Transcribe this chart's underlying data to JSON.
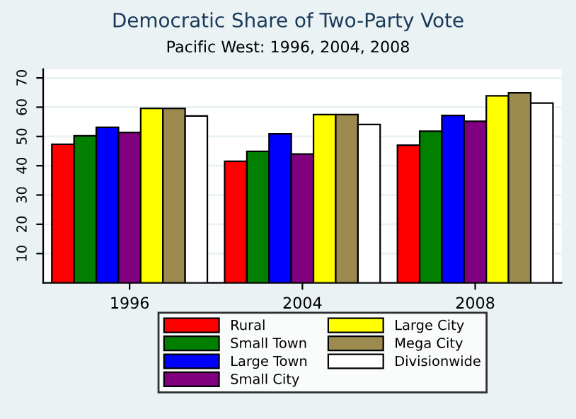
{
  "chart_data": {
    "type": "bar",
    "title": "Democratic Share of Two-Party Vote",
    "subtitle": "Pacific West: 1996, 2004, 2008",
    "categories": [
      "1996",
      "2004",
      "2008"
    ],
    "series": [
      {
        "name": "Rural",
        "color": "#ff0000",
        "values": [
          47.3,
          41.5,
          47.0
        ]
      },
      {
        "name": "Small Town",
        "color": "#007f00",
        "values": [
          50.2,
          44.9,
          51.8
        ]
      },
      {
        "name": "Large Town",
        "color": "#0000ff",
        "values": [
          53.1,
          50.9,
          57.2
        ]
      },
      {
        "name": "Small City",
        "color": "#800080",
        "values": [
          51.4,
          44.0,
          55.2
        ]
      },
      {
        "name": "Large City",
        "color": "#ffff00",
        "values": [
          59.6,
          57.5,
          63.9
        ]
      },
      {
        "name": "Mega City",
        "color": "#9c8a4e",
        "values": [
          59.6,
          57.5,
          64.9
        ]
      },
      {
        "name": "Divisionwide",
        "color": "#ffffff",
        "values": [
          57.0,
          54.1,
          61.4
        ]
      }
    ],
    "ylim": [
      0,
      73
    ],
    "yticks": [
      10,
      20,
      30,
      40,
      50,
      60,
      70
    ],
    "grid": "y",
    "legend": "bottom"
  }
}
